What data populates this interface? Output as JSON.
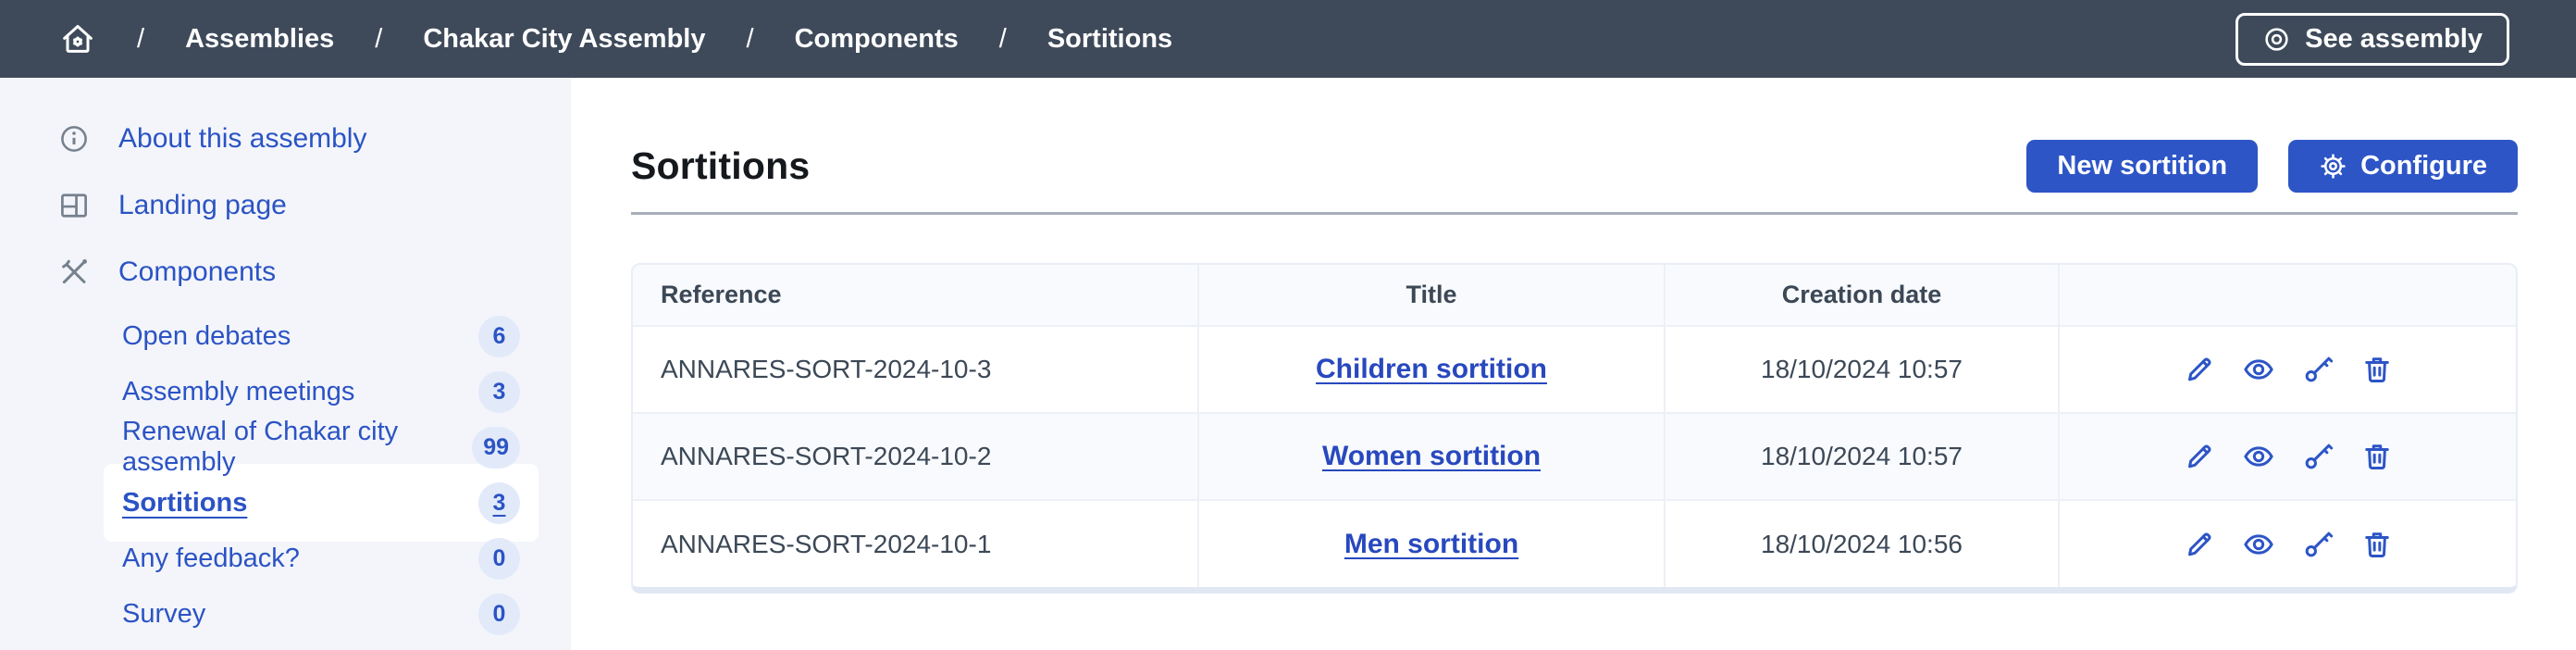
{
  "topbar": {
    "home_icon": "home-gear-icon",
    "breadcrumb": [
      "Assemblies",
      "Chakar City Assembly",
      "Components",
      "Sortitions"
    ],
    "see_assembly": {
      "label": "See assembly",
      "icon": "eye-icon"
    }
  },
  "sidebar": {
    "items": [
      {
        "label": "About this assembly",
        "icon": "info-icon"
      },
      {
        "label": "Landing page",
        "icon": "layout-icon"
      },
      {
        "label": "Components",
        "icon": "tools-icon"
      }
    ],
    "components": [
      {
        "label": "Open debates",
        "count": "6",
        "active": false
      },
      {
        "label": "Assembly meetings",
        "count": "3",
        "active": false
      },
      {
        "label": "Renewal of Chakar city assembly",
        "count": "99",
        "active": false
      },
      {
        "label": "Sortitions",
        "count": "3",
        "active": true
      },
      {
        "label": "Any feedback?",
        "count": "0",
        "active": false
      },
      {
        "label": "Survey",
        "count": "0",
        "active": false
      }
    ]
  },
  "main": {
    "title": "Sortitions",
    "new_button_label": "New sortition",
    "configure_button_label": "Configure",
    "configure_icon": "gear-icon"
  },
  "table": {
    "headers": [
      "Reference",
      "Title",
      "Creation date",
      ""
    ],
    "rows": [
      {
        "reference": "ANNARES-SORT-2024-10-3",
        "title": "Children sortition",
        "created": "18/10/2024 10:57"
      },
      {
        "reference": "ANNARES-SORT-2024-10-2",
        "title": "Women sortition",
        "created": "18/10/2024 10:57"
      },
      {
        "reference": "ANNARES-SORT-2024-10-1",
        "title": "Men sortition",
        "created": "18/10/2024 10:56"
      }
    ],
    "row_actions": [
      {
        "name": "edit",
        "icon": "pencil-icon"
      },
      {
        "name": "preview",
        "icon": "eye-icon"
      },
      {
        "name": "permissions",
        "icon": "key-icon"
      },
      {
        "name": "delete",
        "icon": "trash-icon"
      }
    ]
  },
  "colors": {
    "topbar": "#3e4a5a",
    "accent": "#2d55c6",
    "link": "#2848be",
    "sidebar_bg": "#f3f5fa",
    "badge_bg": "#e2eafa",
    "table_stripe": "#f8fafd"
  }
}
